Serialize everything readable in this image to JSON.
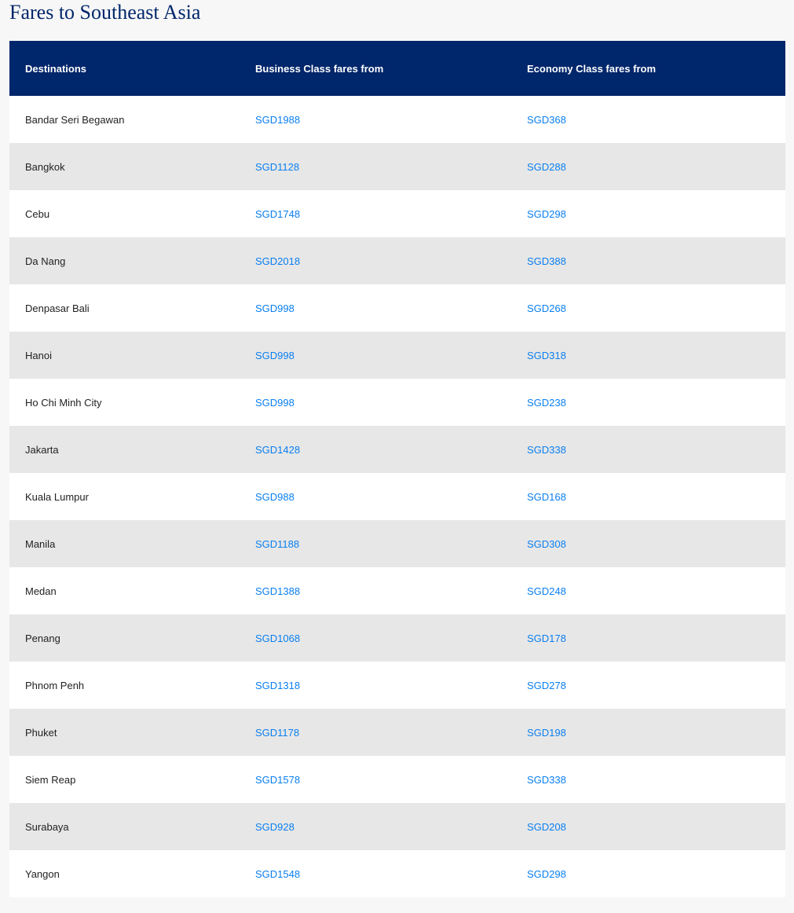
{
  "title": "Fares to Southeast Asia",
  "colors": {
    "header_bg": "#00266b",
    "link": "#0a7ff0",
    "stripe": "#e7e7e7"
  },
  "table": {
    "headers": [
      "Destinations",
      "Business Class fares from",
      "Economy Class fares from"
    ],
    "rows": [
      [
        "Bandar Seri Begawan",
        "SGD1988",
        "SGD368"
      ],
      [
        "Bangkok",
        "SGD1128",
        "SGD288"
      ],
      [
        "Cebu",
        "SGD1748",
        "SGD298"
      ],
      [
        "Da Nang",
        "SGD2018",
        "SGD388"
      ],
      [
        "Denpasar Bali",
        "SGD998",
        "SGD268"
      ],
      [
        "Hanoi",
        "SGD998",
        "SGD318"
      ],
      [
        "Ho Chi Minh City",
        "SGD998",
        "SGD238"
      ],
      [
        "Jakarta",
        "SGD1428",
        "SGD338"
      ],
      [
        "Kuala Lumpur",
        "SGD988",
        "SGD168"
      ],
      [
        "Manila",
        "SGD1188",
        "SGD308"
      ],
      [
        "Medan",
        "SGD1388",
        "SGD248"
      ],
      [
        "Penang",
        "SGD1068",
        "SGD178"
      ],
      [
        "Phnom Penh",
        "SGD1318",
        "SGD278"
      ],
      [
        "Phuket",
        "SGD1178",
        "SGD198"
      ],
      [
        "Siem Reap",
        "SGD1578",
        "SGD338"
      ],
      [
        "Surabaya",
        "SGD928",
        "SGD208"
      ],
      [
        "Yangon",
        "SGD1548",
        "SGD298"
      ]
    ]
  }
}
